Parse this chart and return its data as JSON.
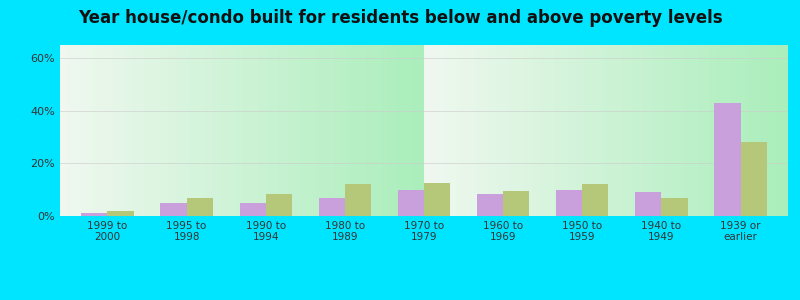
{
  "title": "Year house/condo built for residents below and above poverty levels",
  "categories": [
    "1999 to\n2000",
    "1995 to\n1998",
    "1990 to\n1994",
    "1980 to\n1989",
    "1970 to\n1979",
    "1960 to\n1969",
    "1950 to\n1959",
    "1940 to\n1949",
    "1939 or\nearlier"
  ],
  "below_poverty": [
    1.0,
    5.0,
    5.0,
    7.0,
    10.0,
    8.5,
    10.0,
    9.0,
    43.0
  ],
  "above_poverty": [
    2.0,
    7.0,
    8.5,
    12.0,
    12.5,
    9.5,
    12.0,
    7.0,
    28.0
  ],
  "below_color": "#c9a0dc",
  "above_color": "#b5c87a",
  "ylim": [
    0,
    65
  ],
  "yticks": [
    0,
    20,
    40,
    60
  ],
  "ytick_labels": [
    "0%",
    "20%",
    "40%",
    "60%"
  ],
  "outer_background": "#00e5ff",
  "grid_color": "#cccccc",
  "title_fontsize": 12,
  "gradient_bottom_color": "#aaeebb",
  "gradient_top_color": "#f0f8f0"
}
